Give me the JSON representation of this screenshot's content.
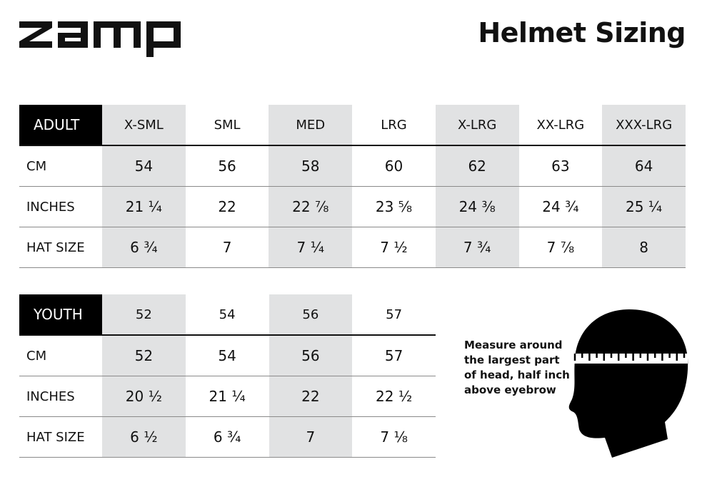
{
  "brand": "zamp",
  "title": "Helmet Sizing",
  "adult": {
    "header": "ADULT",
    "sizes": [
      "X-SML",
      "SML",
      "MED",
      "LRG",
      "X-LRG",
      "XX-LRG",
      "XXX-LRG"
    ],
    "rows": [
      {
        "label": "CM",
        "values": [
          "54",
          "56",
          "58",
          "60",
          "62",
          "63",
          "64"
        ]
      },
      {
        "label": "INCHES",
        "values": [
          "21 ¼",
          "22",
          "22 ⅞",
          "23 ⅝",
          "24 ⅜",
          "24 ¾",
          "25 ¼"
        ]
      },
      {
        "label": "HAT SIZE",
        "values": [
          "6 ¾",
          "7",
          "7 ¼",
          "7 ½",
          "7 ¾",
          "7 ⅞",
          "8"
        ]
      }
    ]
  },
  "youth": {
    "header": "YOUTH",
    "sizes": [
      "52",
      "54",
      "56",
      "57"
    ],
    "rows": [
      {
        "label": "CM",
        "values": [
          "52",
          "54",
          "56",
          "57"
        ]
      },
      {
        "label": "INCHES",
        "values": [
          "20 ½",
          "21 ¼",
          "22",
          "22 ½"
        ]
      },
      {
        "label": "HAT SIZE",
        "values": [
          "6 ½",
          "6 ¾",
          "7",
          "7 ⅛"
        ]
      }
    ]
  },
  "note": [
    "Measure around",
    "the largest part",
    "of head, half inch",
    "above eyebrow"
  ],
  "colors": {
    "shade": "#e1e2e3",
    "header_bg": "#000000"
  }
}
